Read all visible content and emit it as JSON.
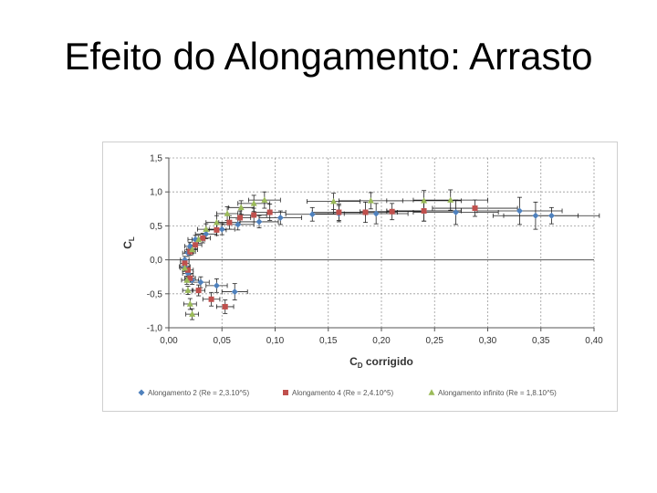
{
  "slide": {
    "title": "Efeito do Alongamento: Arrasto"
  },
  "chart_data": {
    "type": "scatter",
    "title": "",
    "xlabel": {
      "main": "C",
      "sub": "D",
      "rest": " corrigido"
    },
    "ylabel": {
      "main": "C",
      "sub": "L"
    },
    "xlim": [
      0,
      0.4
    ],
    "ylim": [
      -1.0,
      1.5
    ],
    "x_ticks": [
      0,
      0.05,
      0.1,
      0.15,
      0.2,
      0.25,
      0.3,
      0.35,
      0.4
    ],
    "x_tick_labels": [
      "0,00",
      "0,05",
      "0,10",
      "0,15",
      "0,20",
      "0,25",
      "0,30",
      "0,35",
      "0,40"
    ],
    "y_ticks": [
      -1.0,
      -0.5,
      0.0,
      0.5,
      1.0,
      1.5
    ],
    "y_tick_labels": [
      "-1,0",
      "-0,5",
      "0,0",
      "0,5",
      "1,0",
      "1,5"
    ],
    "grid": "dashed-major-y",
    "legend_position": "bottom",
    "error_bars": true,
    "series": [
      {
        "name": "Alongamento 2 (Re = 2,3.10^5)",
        "marker": "diamond",
        "color": "#4f81bd",
        "points": [
          {
            "x": 0.015,
            "y": -0.1,
            "ex": 0.005,
            "ey": 0.05
          },
          {
            "x": 0.018,
            "y": -0.2,
            "ex": 0.005,
            "ey": 0.06
          },
          {
            "x": 0.022,
            "y": -0.3,
            "ex": 0.006,
            "ey": 0.06
          },
          {
            "x": 0.03,
            "y": -0.33,
            "ex": 0.008,
            "ey": 0.08
          },
          {
            "x": 0.045,
            "y": -0.38,
            "ex": 0.01,
            "ey": 0.1
          },
          {
            "x": 0.062,
            "y": -0.47,
            "ex": 0.012,
            "ey": 0.12
          },
          {
            "x": 0.015,
            "y": 0.0,
            "ex": 0.004,
            "ey": 0.05
          },
          {
            "x": 0.018,
            "y": 0.1,
            "ex": 0.005,
            "ey": 0.05
          },
          {
            "x": 0.02,
            "y": 0.2,
            "ex": 0.005,
            "ey": 0.06
          },
          {
            "x": 0.025,
            "y": 0.3,
            "ex": 0.007,
            "ey": 0.06
          },
          {
            "x": 0.035,
            "y": 0.38,
            "ex": 0.01,
            "ey": 0.07
          },
          {
            "x": 0.05,
            "y": 0.45,
            "ex": 0.012,
            "ey": 0.08
          },
          {
            "x": 0.065,
            "y": 0.52,
            "ex": 0.015,
            "ey": 0.08
          },
          {
            "x": 0.085,
            "y": 0.56,
            "ex": 0.018,
            "ey": 0.09
          },
          {
            "x": 0.105,
            "y": 0.62,
            "ex": 0.02,
            "ey": 0.1
          },
          {
            "x": 0.135,
            "y": 0.67,
            "ex": 0.025,
            "ey": 0.1
          },
          {
            "x": 0.16,
            "y": 0.68,
            "ex": 0.025,
            "ey": 0.12
          },
          {
            "x": 0.195,
            "y": 0.68,
            "ex": 0.03,
            "ey": 0.15
          },
          {
            "x": 0.24,
            "y": 0.72,
            "ex": 0.035,
            "ey": 0.15
          },
          {
            "x": 0.27,
            "y": 0.7,
            "ex": 0.04,
            "ey": 0.18
          },
          {
            "x": 0.33,
            "y": 0.72,
            "ex": 0.04,
            "ey": 0.2
          },
          {
            "x": 0.345,
            "y": 0.65,
            "ex": 0.04,
            "ey": 0.2
          },
          {
            "x": 0.36,
            "y": 0.65,
            "ex": 0.045,
            "ey": 0.12
          }
        ]
      },
      {
        "name": "Alongamento 4 (Re = 2,4.10^5)",
        "marker": "square",
        "color": "#c0504d",
        "points": [
          {
            "x": 0.015,
            "y": -0.05,
            "ex": 0.004,
            "ey": 0.05
          },
          {
            "x": 0.018,
            "y": -0.15,
            "ex": 0.005,
            "ey": 0.05
          },
          {
            "x": 0.02,
            "y": -0.27,
            "ex": 0.005,
            "ey": 0.06
          },
          {
            "x": 0.028,
            "y": -0.45,
            "ex": 0.006,
            "ey": 0.08
          },
          {
            "x": 0.04,
            "y": -0.58,
            "ex": 0.008,
            "ey": 0.1
          },
          {
            "x": 0.053,
            "y": -0.69,
            "ex": 0.008,
            "ey": 0.1
          },
          {
            "x": 0.02,
            "y": 0.12,
            "ex": 0.005,
            "ey": 0.05
          },
          {
            "x": 0.025,
            "y": 0.22,
            "ex": 0.006,
            "ey": 0.06
          },
          {
            "x": 0.032,
            "y": 0.32,
            "ex": 0.007,
            "ey": 0.07
          },
          {
            "x": 0.045,
            "y": 0.44,
            "ex": 0.009,
            "ey": 0.08
          },
          {
            "x": 0.057,
            "y": 0.55,
            "ex": 0.01,
            "ey": 0.1
          },
          {
            "x": 0.067,
            "y": 0.62,
            "ex": 0.01,
            "ey": 0.1
          },
          {
            "x": 0.08,
            "y": 0.66,
            "ex": 0.012,
            "ey": 0.1
          },
          {
            "x": 0.095,
            "y": 0.7,
            "ex": 0.015,
            "ey": 0.12
          },
          {
            "x": 0.16,
            "y": 0.7,
            "ex": 0.025,
            "ey": 0.12
          },
          {
            "x": 0.185,
            "y": 0.7,
            "ex": 0.03,
            "ey": 0.15
          },
          {
            "x": 0.21,
            "y": 0.71,
            "ex": 0.03,
            "ey": 0.12
          },
          {
            "x": 0.24,
            "y": 0.72,
            "ex": 0.035,
            "ey": 0.15
          },
          {
            "x": 0.288,
            "y": 0.76,
            "ex": 0.04,
            "ey": 0.12
          }
        ]
      },
      {
        "name": "Alongamento infinito (Re = 1,8.10^5)",
        "marker": "triangle",
        "color": "#9bbb59",
        "points": [
          {
            "x": 0.015,
            "y": -0.12,
            "ex": 0.004,
            "ey": 0.05
          },
          {
            "x": 0.017,
            "y": -0.3,
            "ex": 0.005,
            "ey": 0.06
          },
          {
            "x": 0.018,
            "y": -0.45,
            "ex": 0.005,
            "ey": 0.06
          },
          {
            "x": 0.02,
            "y": -0.65,
            "ex": 0.006,
            "ey": 0.08
          },
          {
            "x": 0.022,
            "y": -0.8,
            "ex": 0.006,
            "ey": 0.08
          },
          {
            "x": 0.022,
            "y": 0.15,
            "ex": 0.005,
            "ey": 0.05
          },
          {
            "x": 0.028,
            "y": 0.3,
            "ex": 0.006,
            "ey": 0.06
          },
          {
            "x": 0.035,
            "y": 0.45,
            "ex": 0.008,
            "ey": 0.08
          },
          {
            "x": 0.045,
            "y": 0.55,
            "ex": 0.01,
            "ey": 0.1
          },
          {
            "x": 0.055,
            "y": 0.68,
            "ex": 0.01,
            "ey": 0.1
          },
          {
            "x": 0.068,
            "y": 0.77,
            "ex": 0.012,
            "ey": 0.1
          },
          {
            "x": 0.08,
            "y": 0.83,
            "ex": 0.015,
            "ey": 0.12
          },
          {
            "x": 0.09,
            "y": 0.88,
            "ex": 0.015,
            "ey": 0.12
          },
          {
            "x": 0.155,
            "y": 0.86,
            "ex": 0.025,
            "ey": 0.12
          },
          {
            "x": 0.19,
            "y": 0.87,
            "ex": 0.03,
            "ey": 0.12
          },
          {
            "x": 0.24,
            "y": 0.87,
            "ex": 0.035,
            "ey": 0.15
          },
          {
            "x": 0.265,
            "y": 0.88,
            "ex": 0.035,
            "ey": 0.15
          }
        ]
      }
    ]
  }
}
